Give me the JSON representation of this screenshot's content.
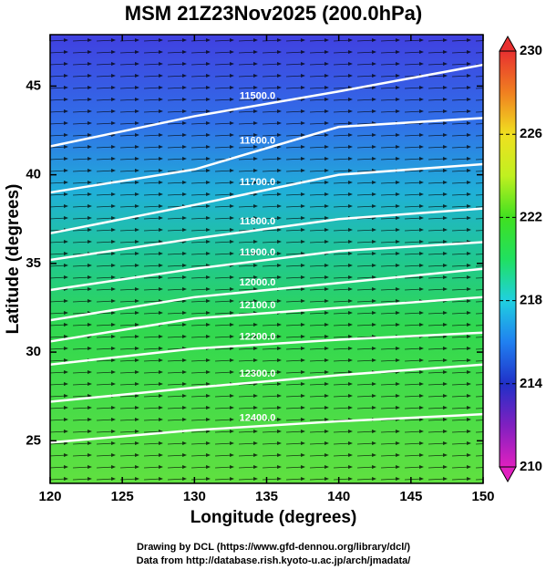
{
  "chart_data": {
    "type": "contour",
    "title": "MSM 21Z23Nov2025 (200.0hPa)",
    "xlabel": "Longitude (degrees)",
    "ylabel": "Latitude  (degrees)",
    "xlim": [
      120,
      150
    ],
    "ylim": [
      22.6,
      47.9
    ],
    "xticks": [
      120,
      125,
      130,
      135,
      140,
      145,
      150
    ],
    "yticks": [
      25,
      30,
      35,
      40,
      45
    ],
    "contour_color": "#ffffff",
    "contours": [
      {
        "level": 11500,
        "label": "11500.0",
        "lon": [
          120,
          130,
          140,
          150
        ],
        "lat": [
          41.6,
          43.3,
          44.7,
          46.2
        ]
      },
      {
        "level": 11600,
        "label": "11600.0",
        "lon": [
          120,
          130,
          140,
          150
        ],
        "lat": [
          39.0,
          40.3,
          42.7,
          43.2
        ]
      },
      {
        "level": 11700,
        "label": "11700.0",
        "lon": [
          120,
          130,
          140,
          150
        ],
        "lat": [
          36.7,
          38.3,
          40.0,
          40.6
        ]
      },
      {
        "level": 11800,
        "label": "11800.0",
        "lon": [
          120,
          130,
          140,
          150
        ],
        "lat": [
          35.2,
          36.4,
          37.5,
          38.1
        ]
      },
      {
        "level": 11900,
        "label": "11900.0",
        "lon": [
          120,
          130,
          140,
          150
        ],
        "lat": [
          33.5,
          34.7,
          35.7,
          36.2
        ]
      },
      {
        "level": 12000,
        "label": "12000.0",
        "lon": [
          120,
          130,
          140,
          150
        ],
        "lat": [
          31.8,
          33.1,
          33.9,
          34.7
        ]
      },
      {
        "level": 12100,
        "label": "12100.0",
        "lon": [
          120,
          130,
          140,
          150
        ],
        "lat": [
          30.6,
          31.9,
          32.5,
          33.1
        ]
      },
      {
        "level": 12200,
        "label": "12200.0",
        "lon": [
          120,
          130,
          140,
          150
        ],
        "lat": [
          29.3,
          30.2,
          30.7,
          31.1
        ]
      },
      {
        "level": 12300,
        "label": "12300.0",
        "lon": [
          120,
          130,
          140,
          150
        ],
        "lat": [
          27.2,
          28.0,
          28.7,
          29.3
        ]
      },
      {
        "level": 12400,
        "label": "12400.0",
        "lon": [
          120,
          130,
          140,
          150
        ],
        "lat": [
          24.9,
          25.6,
          26.1,
          26.5
        ]
      }
    ],
    "colorbar": {
      "lim": [
        210,
        230
      ],
      "ticks": [
        210,
        214,
        218,
        222,
        226,
        230
      ],
      "colors": [
        "#e020c0",
        "#8020c0",
        "#2030c8",
        "#2080f0",
        "#20d0e0",
        "#20e060",
        "#40e020",
        "#c0f020",
        "#f0e020",
        "#f08020",
        "#e83030"
      ]
    },
    "footer": [
      "Drawing by DCL (https://www.gfd-dennou.org/library/dcl/)",
      "Data from http://database.rish.kyoto-u.ac.jp/arch/jmadata/"
    ]
  }
}
